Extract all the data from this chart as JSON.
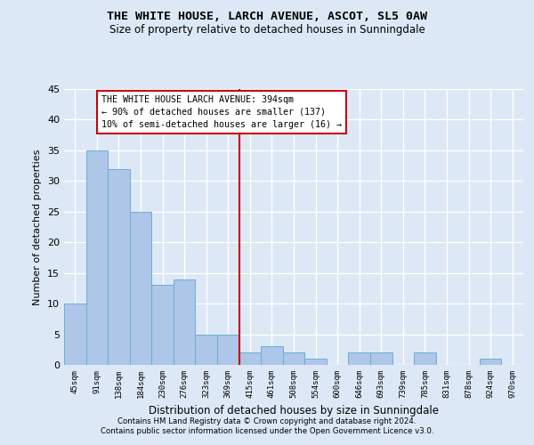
{
  "title": "THE WHITE HOUSE, LARCH AVENUE, ASCOT, SL5 0AW",
  "subtitle": "Size of property relative to detached houses in Sunningdale",
  "xlabel": "Distribution of detached houses by size in Sunningdale",
  "ylabel": "Number of detached properties",
  "footnote1": "Contains HM Land Registry data © Crown copyright and database right 2024.",
  "footnote2": "Contains public sector information licensed under the Open Government Licence v3.0.",
  "categories": [
    "45sqm",
    "91sqm",
    "138sqm",
    "184sqm",
    "230sqm",
    "276sqm",
    "323sqm",
    "369sqm",
    "415sqm",
    "461sqm",
    "508sqm",
    "554sqm",
    "600sqm",
    "646sqm",
    "693sqm",
    "739sqm",
    "785sqm",
    "831sqm",
    "878sqm",
    "924sqm",
    "970sqm"
  ],
  "values": [
    10,
    35,
    32,
    25,
    13,
    14,
    5,
    5,
    2,
    3,
    2,
    1,
    0,
    2,
    2,
    0,
    2,
    0,
    0,
    1,
    0
  ],
  "bar_color": "#aec6e8",
  "bar_edge_color": "#6baed6",
  "vline_x": 7.5,
  "vline_color": "#cc0000",
  "annotation_line1": "THE WHITE HOUSE LARCH AVENUE: 394sqm",
  "annotation_line2": "← 90% of detached houses are smaller (137)",
  "annotation_line3": "10% of semi-detached houses are larger (16) →",
  "annotation_box_fc": "#ffffff",
  "annotation_box_ec": "#cc0000",
  "bg_color": "#dce8f5",
  "grid_color": "#ffffff",
  "ylim": [
    0,
    45
  ],
  "yticks": [
    0,
    5,
    10,
    15,
    20,
    25,
    30,
    35,
    40,
    45
  ]
}
